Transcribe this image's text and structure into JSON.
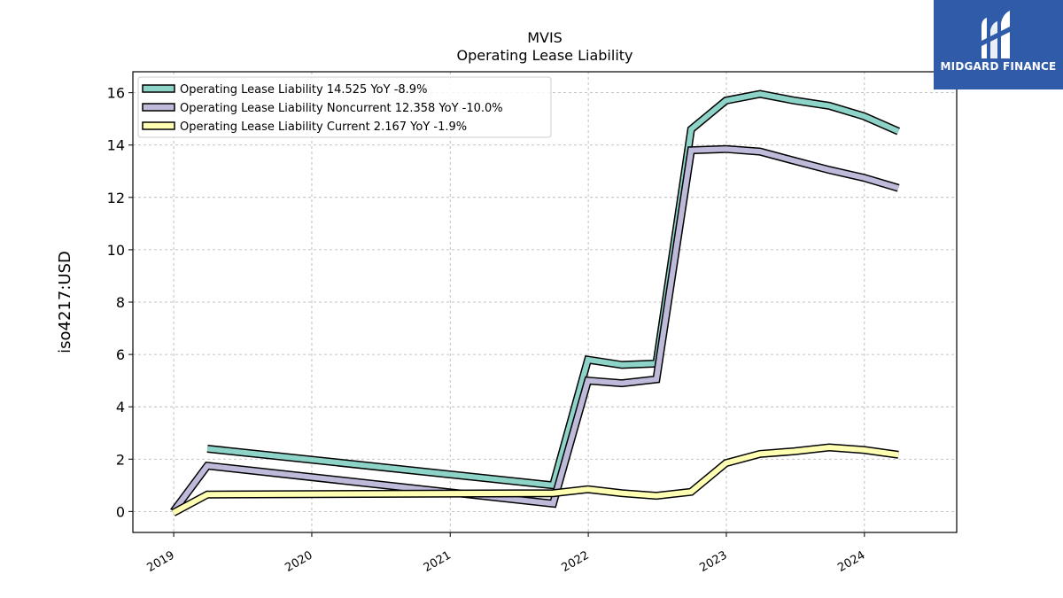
{
  "title_line1": "MVIS",
  "title_line2": "Operating Lease Liability",
  "ylabel": "iso4217:USD",
  "logo": {
    "text": "MIDGARD FINANCE",
    "color": "#2f5ba8"
  },
  "legend": [
    "Operating Lease Liability  14.525 YoY -8.9%",
    "Operating Lease Liability Noncurrent  12.358 YoY -10.0%",
    "Operating Lease Liability Current  2.167 YoY -1.9%"
  ],
  "chart_data": {
    "type": "line",
    "title": "MVIS\nOperating Lease Liability",
    "ylabel": "iso4217:USD",
    "xlabel": "",
    "ylim": [
      -0.8,
      16.8
    ],
    "yticks": [
      0,
      2,
      4,
      6,
      8,
      10,
      12,
      14,
      16
    ],
    "xticks": [
      "2019",
      "2020",
      "2021",
      "2022",
      "2023",
      "2024"
    ],
    "grid": true,
    "legend_position": "top-left",
    "series": [
      {
        "name": "Operating Lease Liability",
        "color": "#8dd3c7",
        "points": [
          [
            "2019-03-31",
            2.4
          ],
          [
            "2021-09-30",
            1.0
          ],
          [
            "2021-12-31",
            5.8
          ],
          [
            "2022-03-31",
            5.6
          ],
          [
            "2022-06-30",
            5.65
          ],
          [
            "2022-09-30",
            14.6
          ],
          [
            "2022-12-31",
            15.7
          ],
          [
            "2023-03-31",
            15.95
          ],
          [
            "2023-06-30",
            15.7
          ],
          [
            "2023-09-30",
            15.5
          ],
          [
            "2023-12-31",
            15.1
          ],
          [
            "2024-03-31",
            14.525
          ]
        ]
      },
      {
        "name": "Operating Lease Liability Noncurrent",
        "color": "#bebada",
        "points": [
          [
            "2018-12-31",
            0.0
          ],
          [
            "2019-03-31",
            1.75
          ],
          [
            "2021-09-30",
            0.3
          ],
          [
            "2021-12-31",
            5.0
          ],
          [
            "2022-03-31",
            4.9
          ],
          [
            "2022-06-30",
            5.05
          ],
          [
            "2022-09-30",
            13.8
          ],
          [
            "2022-12-31",
            13.85
          ],
          [
            "2023-03-31",
            13.75
          ],
          [
            "2023-06-30",
            13.4
          ],
          [
            "2023-09-30",
            13.05
          ],
          [
            "2023-12-31",
            12.75
          ],
          [
            "2024-03-31",
            12.358
          ]
        ]
      },
      {
        "name": "Operating Lease Liability Current",
        "color": "#ffffb3",
        "points": [
          [
            "2018-12-31",
            -0.05
          ],
          [
            "2019-03-31",
            0.65
          ],
          [
            "2021-09-30",
            0.7
          ],
          [
            "2021-12-31",
            0.85
          ],
          [
            "2022-03-31",
            0.7
          ],
          [
            "2022-06-30",
            0.6
          ],
          [
            "2022-09-30",
            0.75
          ],
          [
            "2022-12-31",
            1.85
          ],
          [
            "2023-03-31",
            2.2
          ],
          [
            "2023-06-30",
            2.3
          ],
          [
            "2023-09-30",
            2.45
          ],
          [
            "2023-12-31",
            2.35
          ],
          [
            "2024-03-31",
            2.167
          ]
        ]
      }
    ]
  }
}
